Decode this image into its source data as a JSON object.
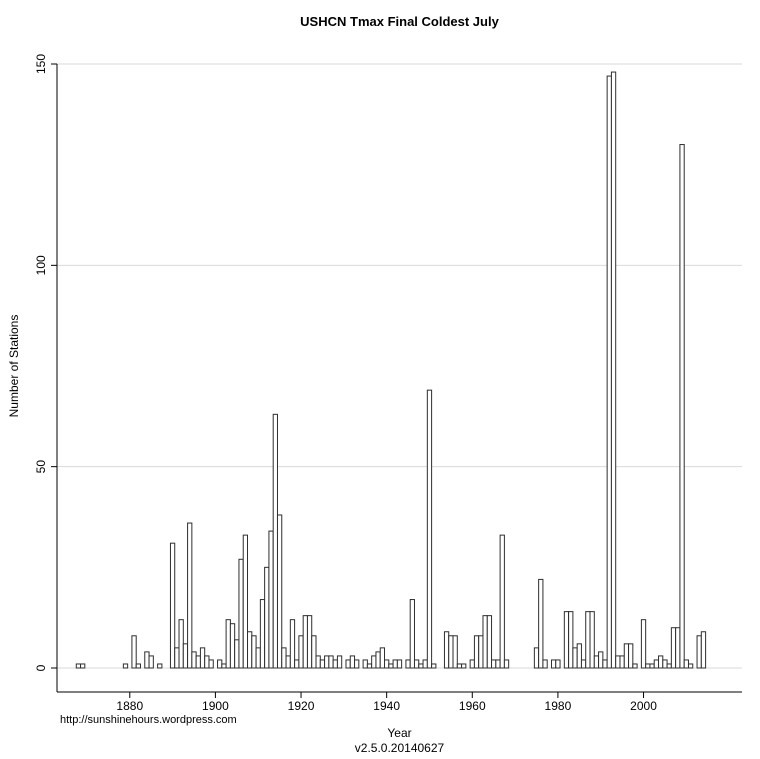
{
  "chart_data": {
    "type": "bar",
    "title": "USHCN Tmax Final Coldest July",
    "xlabel": "Year",
    "ylabel": "Number of Stations",
    "version_label": "v2.5.0.20140627",
    "watermark": "http://sunshinehours.wordpress.com",
    "x_ticks": [
      1880,
      1900,
      1920,
      1940,
      1960,
      1980,
      2000
    ],
    "y_ticks": [
      0,
      50,
      100,
      150
    ],
    "xlim": [
      1863,
      2023
    ],
    "ylim": [
      0,
      150
    ],
    "grid": true,
    "legend": "none",
    "bar_fill": "#ffffff",
    "bar_stroke": "#2e2e2e",
    "grid_color": "#d9d9d9",
    "axis_color": "#000000",
    "bars": [
      [
        1868,
        1
      ],
      [
        1869,
        1
      ],
      [
        1879,
        1
      ],
      [
        1881,
        8
      ],
      [
        1882,
        1
      ],
      [
        1884,
        4
      ],
      [
        1885,
        3
      ],
      [
        1887,
        1
      ],
      [
        1890,
        31
      ],
      [
        1891,
        5
      ],
      [
        1892,
        12
      ],
      [
        1893,
        6
      ],
      [
        1894,
        36
      ],
      [
        1895,
        4
      ],
      [
        1896,
        3
      ],
      [
        1897,
        5
      ],
      [
        1898,
        3
      ],
      [
        1899,
        2
      ],
      [
        1901,
        2
      ],
      [
        1902,
        1
      ],
      [
        1903,
        12
      ],
      [
        1904,
        11
      ],
      [
        1905,
        7
      ],
      [
        1906,
        27
      ],
      [
        1907,
        33
      ],
      [
        1908,
        9
      ],
      [
        1909,
        8
      ],
      [
        1910,
        5
      ],
      [
        1911,
        17
      ],
      [
        1912,
        25
      ],
      [
        1913,
        34
      ],
      [
        1914,
        63
      ],
      [
        1915,
        38
      ],
      [
        1916,
        5
      ],
      [
        1917,
        3
      ],
      [
        1918,
        12
      ],
      [
        1919,
        2
      ],
      [
        1920,
        8
      ],
      [
        1921,
        13
      ],
      [
        1922,
        13
      ],
      [
        1923,
        8
      ],
      [
        1924,
        3
      ],
      [
        1925,
        2
      ],
      [
        1926,
        3
      ],
      [
        1927,
        3
      ],
      [
        1928,
        2
      ],
      [
        1929,
        3
      ],
      [
        1931,
        2
      ],
      [
        1932,
        3
      ],
      [
        1933,
        2
      ],
      [
        1935,
        2
      ],
      [
        1936,
        1
      ],
      [
        1937,
        3
      ],
      [
        1938,
        4
      ],
      [
        1939,
        5
      ],
      [
        1940,
        2
      ],
      [
        1941,
        1
      ],
      [
        1942,
        2
      ],
      [
        1943,
        2
      ],
      [
        1945,
        2
      ],
      [
        1946,
        17
      ],
      [
        1947,
        2
      ],
      [
        1948,
        1
      ],
      [
        1949,
        2
      ],
      [
        1950,
        69
      ],
      [
        1951,
        1
      ],
      [
        1954,
        9
      ],
      [
        1955,
        8
      ],
      [
        1956,
        8
      ],
      [
        1957,
        1
      ],
      [
        1958,
        1
      ],
      [
        1960,
        2
      ],
      [
        1961,
        8
      ],
      [
        1962,
        8
      ],
      [
        1963,
        13
      ],
      [
        1964,
        13
      ],
      [
        1965,
        2
      ],
      [
        1966,
        2
      ],
      [
        1967,
        33
      ],
      [
        1968,
        2
      ],
      [
        1975,
        5
      ],
      [
        1976,
        22
      ],
      [
        1977,
        2
      ],
      [
        1979,
        2
      ],
      [
        1980,
        2
      ],
      [
        1982,
        14
      ],
      [
        1983,
        14
      ],
      [
        1984,
        5
      ],
      [
        1985,
        6
      ],
      [
        1986,
        2
      ],
      [
        1987,
        14
      ],
      [
        1988,
        14
      ],
      [
        1989,
        3
      ],
      [
        1990,
        4
      ],
      [
        1991,
        2
      ],
      [
        1992,
        147
      ],
      [
        1993,
        148
      ],
      [
        1994,
        3
      ],
      [
        1995,
        3
      ],
      [
        1996,
        6
      ],
      [
        1997,
        6
      ],
      [
        1998,
        1
      ],
      [
        2000,
        12
      ],
      [
        2001,
        1
      ],
      [
        2002,
        1
      ],
      [
        2003,
        2
      ],
      [
        2004,
        3
      ],
      [
        2005,
        2
      ],
      [
        2006,
        1
      ],
      [
        2007,
        10
      ],
      [
        2008,
        10
      ],
      [
        2009,
        130
      ],
      [
        2010,
        2
      ],
      [
        2011,
        1
      ],
      [
        2013,
        8
      ],
      [
        2014,
        9
      ]
    ]
  }
}
